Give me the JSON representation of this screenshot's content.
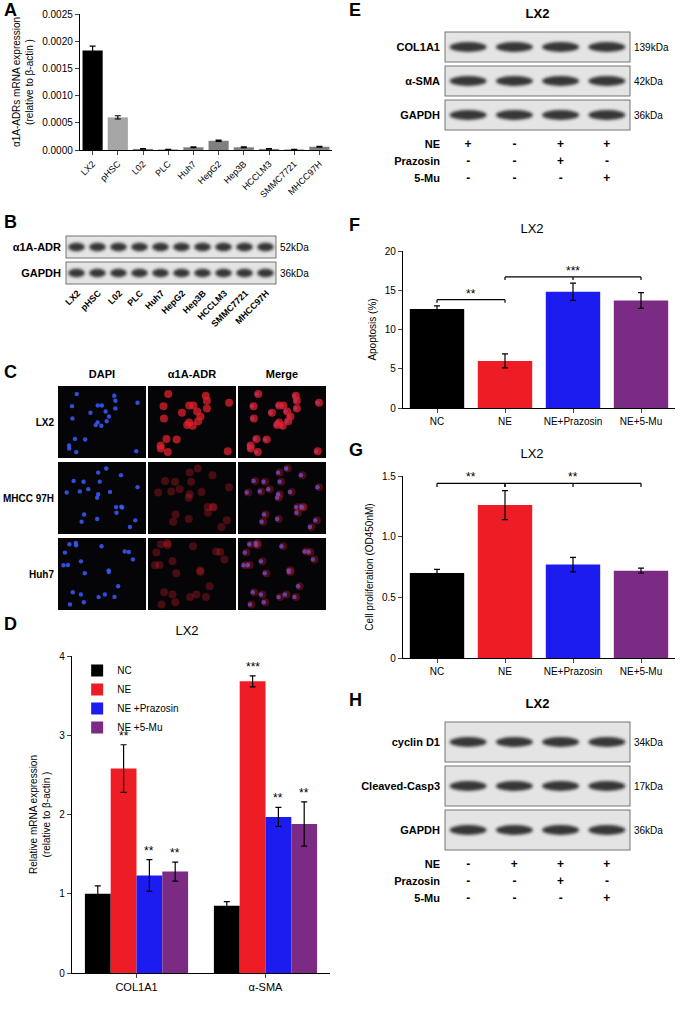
{
  "chart_data": [
    {
      "panel": "A",
      "type": "bar",
      "y_label": "α1A-ADRs mRNA expression\n(relative to β-actin )",
      "categories": [
        "LX2",
        "pHSC",
        "L02",
        "PLC",
        "Huh7",
        "HepG2",
        "Hep3B",
        "HCCLM3",
        "SMMC7721",
        "MHCC97H"
      ],
      "values": [
        0.00183,
        0.0006,
        2e-05,
        1e-05,
        5e-05,
        0.00017,
        5e-05,
        2e-05,
        1e-05,
        6e-05
      ],
      "errors": [
        8e-05,
        3e-05,
        4e-06,
        3e-06,
        6e-06,
        1e-05,
        6e-06,
        4e-06,
        3e-06,
        6e-06
      ],
      "colors": [
        "#000000",
        "#a6a6a6",
        "#7f7f7f",
        "#7f7f7f",
        "#7f7f7f",
        "#7f7f7f",
        "#7f7f7f",
        "#7f7f7f",
        "#7f7f7f",
        "#7f7f7f"
      ],
      "ylim": [
        0,
        0.0025
      ],
      "yticks": [
        {
          "value": 0,
          "label": "0.0000"
        },
        0.0005,
        {
          "value": 0.001,
          "label": "0.0010"
        },
        0.0015,
        {
          "value": 0.002,
          "label": "0.0020"
        },
        0.0025
      ]
    },
    {
      "panel": "D",
      "type": "bar",
      "title": "LX2",
      "y_label": "Relative mRNA expression\n(relative to β-actin )",
      "categories": [
        "COL1A1",
        "α-SMA"
      ],
      "series": [
        {
          "name": "NC",
          "color": "#000000",
          "values": [
            1.0,
            0.85
          ],
          "errors": [
            0.1,
            0.05
          ]
        },
        {
          "name": "NE",
          "color": "#ee1c25",
          "values": [
            2.58,
            3.68
          ],
          "errors": [
            0.3,
            0.07
          ],
          "significance": [
            "**",
            "***"
          ]
        },
        {
          "name": "NE +Prazosin",
          "color": "#1c1cf0",
          "values": [
            1.23,
            1.97
          ],
          "errors": [
            0.2,
            0.12
          ],
          "significance": [
            "**",
            "**"
          ]
        },
        {
          "name": "NE +5-Mu",
          "color": "#7b2b83",
          "values": [
            1.28,
            1.88
          ],
          "errors": [
            0.12,
            0.28
          ],
          "significance": [
            "**",
            "**"
          ]
        }
      ],
      "ylim": [
        0,
        4
      ],
      "yticks": [
        0,
        1,
        2,
        3,
        4
      ],
      "legend": "top-left"
    },
    {
      "panel": "F",
      "type": "bar",
      "title": "LX2",
      "y_label": "Apoptosis (%)",
      "categories": [
        "NC",
        "NE",
        "NE+Prazosin",
        "NE+5-Mu"
      ],
      "values": [
        12.6,
        6.0,
        14.8,
        13.7
      ],
      "errors": [
        0.4,
        0.9,
        1.1,
        1.0
      ],
      "colors": [
        "#000000",
        "#ee1c25",
        "#1c1cf0",
        "#7b2b83"
      ],
      "ylim": [
        0,
        20
      ],
      "yticks": [
        0,
        5,
        10,
        15,
        20
      ],
      "brackets": [
        {
          "from": "NC",
          "to": [
            "NE"
          ],
          "label": "**"
        },
        {
          "from": "NE",
          "to": [
            "NE+Prazosin",
            "NE+5-Mu"
          ],
          "label": "***"
        }
      ]
    },
    {
      "panel": "G",
      "type": "bar",
      "title": "LX2",
      "y_label": "Cell proliferation (OD450nM)",
      "categories": [
        "NC",
        "NE",
        "NE+Prazosin",
        "NE+5-Mu"
      ],
      "values": [
        0.7,
        1.26,
        0.77,
        0.72
      ],
      "errors": [
        0.03,
        0.12,
        0.06,
        0.02
      ],
      "colors": [
        "#000000",
        "#ee1c25",
        "#1c1cf0",
        "#7b2b83"
      ],
      "ylim": [
        0,
        1.5
      ],
      "yticks": [
        0,
        0.5,
        {
          "value": 1,
          "label": "1.0"
        },
        1.5
      ],
      "brackets": [
        {
          "from": "NC",
          "to": [
            "NE"
          ],
          "label": "**"
        },
        {
          "from": "NE",
          "to": [
            "NE+Prazosin",
            "NE+5-Mu"
          ],
          "label": "**"
        }
      ]
    }
  ],
  "blots": [
    {
      "panel": "B",
      "bands": [
        {
          "name": "α1A-ADR",
          "size": "52kDa"
        },
        {
          "name": "GAPDH",
          "size": "36kDa"
        }
      ],
      "lanes": [
        "LX2",
        "pHSC",
        "L02",
        "PLC",
        "Huh7",
        "HepG2",
        "Hep3B",
        "HCCLM3",
        "SMMC7721",
        "MHCC97H"
      ]
    },
    {
      "panel": "E",
      "title": "LX2",
      "bands": [
        {
          "name": "COL1A1",
          "size": "139kDa"
        },
        {
          "name": "α-SMA",
          "size": "42kDa"
        },
        {
          "name": "GAPDH",
          "size": "36kDa"
        }
      ],
      "treatments": [
        {
          "name": "NE",
          "signs": [
            "+",
            "-",
            "+",
            "+"
          ]
        },
        {
          "name": "Prazosin",
          "signs": [
            "-",
            "-",
            "+",
            "-"
          ]
        },
        {
          "name": "5-Mu",
          "signs": [
            "-",
            "-",
            "-",
            "+"
          ]
        }
      ]
    },
    {
      "panel": "H",
      "title": "LX2",
      "bands": [
        {
          "name": "cyclin D1",
          "size": "34kDa"
        },
        {
          "name": "Cleaved-Casp3",
          "size": "17kDa"
        },
        {
          "name": "GAPDH",
          "size": "36kDa"
        }
      ],
      "treatments": [
        {
          "name": "NE",
          "signs": [
            "-",
            "+",
            "+",
            "+"
          ]
        },
        {
          "name": "Prazosin",
          "signs": [
            "-",
            "-",
            "+",
            "-"
          ]
        },
        {
          "name": "5-Mu",
          "signs": [
            "-",
            "-",
            "-",
            "+"
          ]
        }
      ]
    }
  ],
  "images": {
    "panel": "C",
    "columns": [
      "DAPI",
      "α1A-ADR",
      "Merge"
    ],
    "rows": [
      "LX2",
      "MHCC 97H",
      "Huh7"
    ]
  }
}
